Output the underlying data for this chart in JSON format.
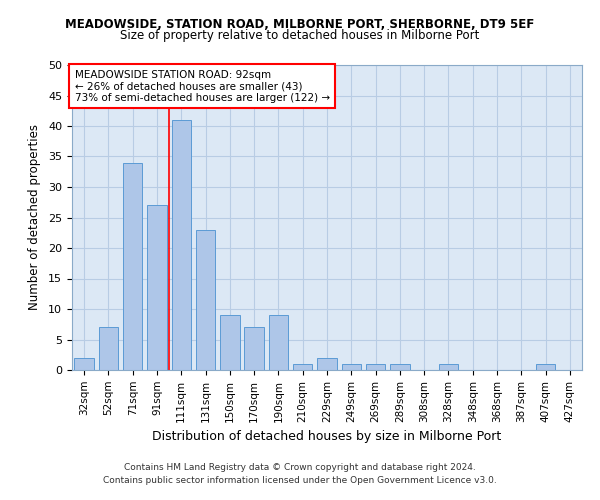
{
  "title_line1": "MEADOWSIDE, STATION ROAD, MILBORNE PORT, SHERBORNE, DT9 5EF",
  "title_line2": "Size of property relative to detached houses in Milborne Port",
  "xlabel": "Distribution of detached houses by size in Milborne Port",
  "ylabel": "Number of detached properties",
  "bar_labels": [
    "32sqm",
    "52sqm",
    "71sqm",
    "91sqm",
    "111sqm",
    "131sqm",
    "150sqm",
    "170sqm",
    "190sqm",
    "210sqm",
    "229sqm",
    "249sqm",
    "269sqm",
    "289sqm",
    "308sqm",
    "328sqm",
    "348sqm",
    "368sqm",
    "387sqm",
    "407sqm",
    "427sqm"
  ],
  "bar_values": [
    2,
    7,
    34,
    27,
    41,
    23,
    9,
    7,
    9,
    1,
    2,
    1,
    1,
    1,
    0,
    1,
    0,
    0,
    0,
    1,
    0
  ],
  "bar_color": "#aec6e8",
  "bar_edgecolor": "#5b9bd5",
  "ylim": [
    0,
    50
  ],
  "yticks": [
    0,
    5,
    10,
    15,
    20,
    25,
    30,
    35,
    40,
    45,
    50
  ],
  "red_line_x": 3.5,
  "annotation_title": "MEADOWSIDE STATION ROAD: 92sqm",
  "annotation_line1": "← 26% of detached houses are smaller (43)",
  "annotation_line2": "73% of semi-detached houses are larger (122) →",
  "footer_line1": "Contains HM Land Registry data © Crown copyright and database right 2024.",
  "footer_line2": "Contains public sector information licensed under the Open Government Licence v3.0.",
  "bg_color": "#dce8f5",
  "grid_color": "#b8cce4"
}
